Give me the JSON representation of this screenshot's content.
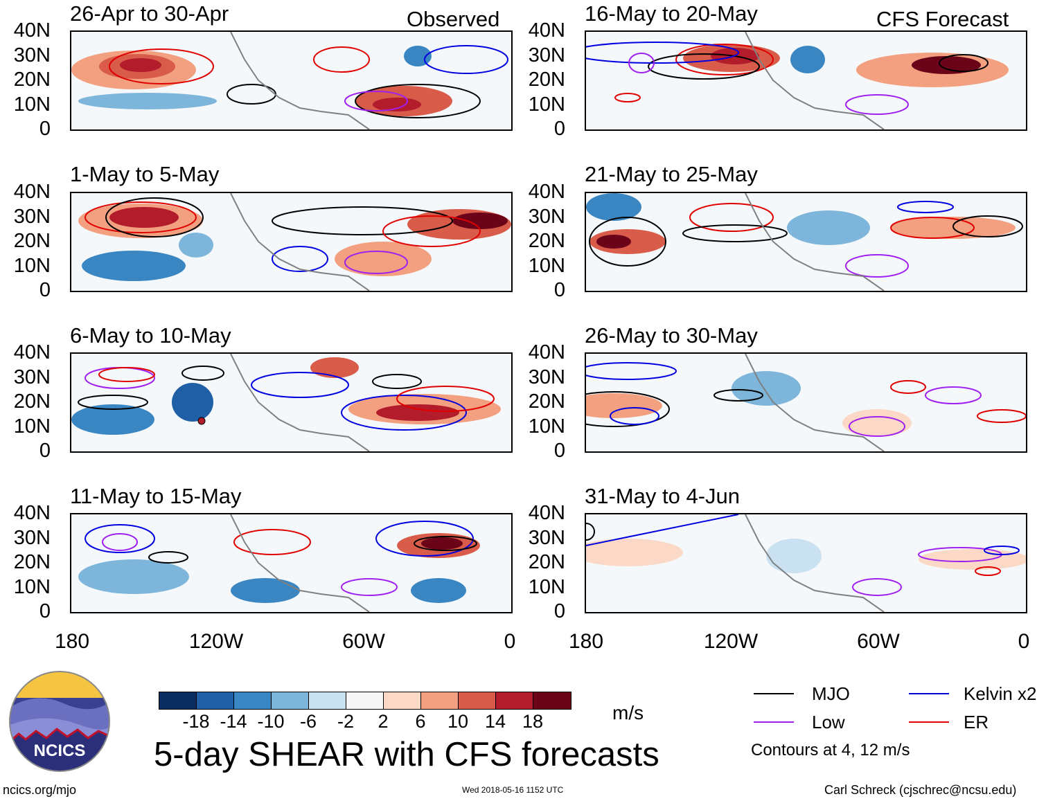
{
  "headers": {
    "observed": "Observed",
    "forecast": "CFS Forecast"
  },
  "panels": [
    {
      "title": "26-Apr to 30-Apr"
    },
    {
      "title": "1-May to 5-May"
    },
    {
      "title": "6-May to 10-May"
    },
    {
      "title": "11-May to 15-May"
    },
    {
      "title": "16-May to 20-May"
    },
    {
      "title": "21-May to 25-May"
    },
    {
      "title": "26-May to 30-May"
    },
    {
      "title": "31-May to 4-Jun"
    }
  ],
  "y_axis": [
    "40N",
    "30N",
    "20N",
    "10N",
    "0"
  ],
  "x_axis": [
    "180",
    "120W",
    "60W",
    "0"
  ],
  "colorbar": {
    "colors": [
      "#0b2c5e",
      "#1f5fa6",
      "#3a86c2",
      "#7db6da",
      "#c9e1f0",
      "#f7f7f7",
      "#fbd9c6",
      "#f2a07f",
      "#d95c4a",
      "#b21c2b",
      "#6b0319"
    ],
    "ticks": [
      "-18",
      "-14",
      "-10",
      "-6",
      "-2",
      "2",
      "6",
      "10",
      "14",
      "18"
    ],
    "units": "m/s"
  },
  "legend": {
    "items": [
      {
        "label": "MJO",
        "color": "#000000"
      },
      {
        "label": "Kelvin x2",
        "color": "#0000e0"
      },
      {
        "label": "Low",
        "color": "#a020f0"
      },
      {
        "label": "ER",
        "color": "#e00000"
      }
    ],
    "note": "Contours at 4, 12 m/s"
  },
  "title": "5-day SHEAR with CFS forecasts",
  "footer": {
    "url": "ncics.org/mjo",
    "timestamp": "Wed 2018-05-16 1152 UTC",
    "credit": "Carl Schreck (cjschrec@ncsu.edu)"
  },
  "logo": {
    "text": "NCICS"
  }
}
